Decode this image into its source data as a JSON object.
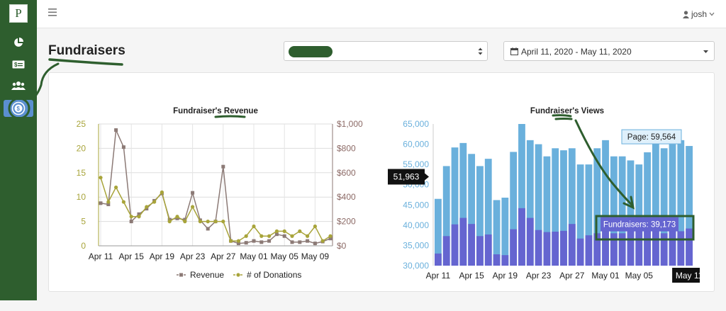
{
  "sidebar": {
    "logo": "P",
    "items": [
      {
        "icon": "pie-chart-icon"
      },
      {
        "icon": "money-icon"
      },
      {
        "icon": "users-icon"
      },
      {
        "icon": "fundraiser-icon",
        "active": true
      }
    ]
  },
  "topbar": {
    "user": "josh"
  },
  "page": {
    "title": "Fundraisers"
  },
  "filters": {
    "date_range": "April 11, 2020 - May 11, 2020"
  },
  "chart_data": [
    {
      "type": "line",
      "title": "Fundraiser's Revenue",
      "x": [
        "Apr 11",
        "Apr 12",
        "Apr 13",
        "Apr 14",
        "Apr 15",
        "Apr 16",
        "Apr 17",
        "Apr 18",
        "Apr 19",
        "Apr 20",
        "Apr 21",
        "Apr 22",
        "Apr 23",
        "Apr 24",
        "Apr 25",
        "Apr 26",
        "Apr 27",
        "Apr 28",
        "Apr 29",
        "Apr 30",
        "May 01",
        "May 02",
        "May 03",
        "May 04",
        "May 05",
        "May 06",
        "May 07",
        "May 08",
        "May 09",
        "May 10",
        "May 11"
      ],
      "x_tick_labels": [
        "Apr 11",
        "Apr 15",
        "Apr 19",
        "Apr 23",
        "Apr 27",
        "May 01",
        "May 05",
        "May 09"
      ],
      "y_left": {
        "ticks": [
          "0",
          "5",
          "10",
          "15",
          "20",
          "25"
        ],
        "min": 0,
        "max": 25
      },
      "y_right": {
        "ticks": [
          "$0",
          "$200",
          "$400",
          "$600",
          "$800",
          "$1,000"
        ],
        "min": 0,
        "max": 1000
      },
      "legend_position": "bottom",
      "series": [
        {
          "name": "Revenue",
          "axis": "right",
          "color": "#8c7a76",
          "values": [
            350,
            340,
            950,
            810,
            200,
            260,
            305,
            370,
            430,
            215,
            225,
            215,
            435,
            210,
            140,
            200,
            650,
            40,
            20,
            25,
            40,
            30,
            40,
            95,
            80,
            30,
            30,
            40,
            20,
            35,
            60
          ]
        },
        {
          "name": "# of Donations",
          "axis": "left",
          "color": "#a8a43a",
          "values": [
            14,
            9,
            12,
            9,
            6,
            6,
            8,
            9,
            11,
            5,
            6,
            5,
            8,
            5,
            5,
            5,
            5,
            1,
            1,
            2,
            4,
            2,
            2,
            3,
            3,
            2,
            3,
            2,
            4,
            1,
            2
          ]
        }
      ]
    },
    {
      "type": "bar",
      "title": "Fundraiser's Views",
      "x": [
        "Apr 11",
        "Apr 12",
        "Apr 13",
        "Apr 14",
        "Apr 15",
        "Apr 16",
        "Apr 17",
        "Apr 18",
        "Apr 19",
        "Apr 20",
        "Apr 21",
        "Apr 22",
        "Apr 23",
        "Apr 24",
        "Apr 25",
        "Apr 26",
        "Apr 27",
        "Apr 28",
        "Apr 29",
        "Apr 30",
        "May 01",
        "May 02",
        "May 03",
        "May 04",
        "May 05",
        "May 06",
        "May 07",
        "May 08",
        "May 09",
        "May 10",
        "May 11"
      ],
      "x_tick_labels": [
        "Apr 11",
        "Apr 15",
        "Apr 19",
        "Apr 23",
        "Apr 27",
        "May 01",
        "May 05",
        "May 11"
      ],
      "y_ticks": [
        "65,000",
        "60,000",
        "55,000",
        "50,000",
        "45,000",
        "40,000",
        "35,000",
        "30,000"
      ],
      "ylim": [
        30000,
        65000
      ],
      "series": [
        {
          "name": "Page",
          "color": "#6ab0dc",
          "values": [
            46500,
            54600,
            59200,
            60300,
            57600,
            54600,
            56400,
            46200,
            46800,
            58100,
            65000,
            61000,
            60000,
            57000,
            59000,
            58500,
            59000,
            55000,
            55000,
            59000,
            61000,
            57000,
            57000,
            56000,
            55000,
            58000,
            60500,
            59000,
            60000,
            61000,
            59564
          ]
        },
        {
          "name": "Fundraisers",
          "color": "#6565d0",
          "values": [
            33000,
            37300,
            40200,
            41800,
            40300,
            37300,
            37700,
            32800,
            32600,
            39000,
            44200,
            41800,
            38800,
            38300,
            38400,
            38600,
            40300,
            36700,
            37500,
            38000,
            39000,
            38000,
            38000,
            39000,
            42000,
            40000,
            38500,
            38000,
            39000,
            38500,
            39173
          ]
        }
      ],
      "tooltips": {
        "page": "Page: 59,564",
        "fundraisers": "Fundraisers: 39,173",
        "y_hover": "51,963",
        "x_hover": "May 11"
      }
    }
  ]
}
